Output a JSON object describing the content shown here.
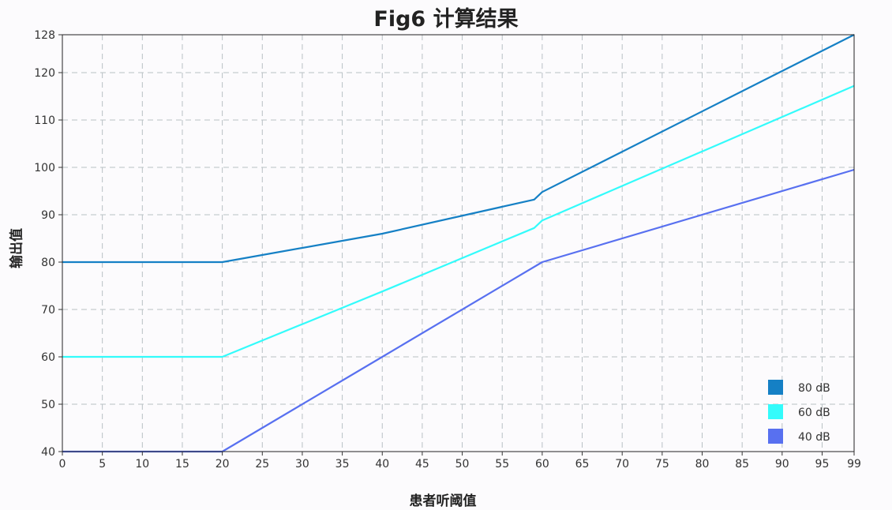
{
  "chart_data": {
    "type": "line",
    "title": "Fig6 计算结果",
    "xlabel": "患者听阈值",
    "ylabel": "输出值",
    "xlim": [
      0,
      99
    ],
    "ylim": [
      40,
      128
    ],
    "x_ticks": [
      0,
      5,
      10,
      15,
      20,
      25,
      30,
      35,
      40,
      45,
      50,
      55,
      60,
      65,
      70,
      75,
      80,
      85,
      90,
      95,
      99
    ],
    "y_ticks": [
      40,
      50,
      60,
      70,
      80,
      90,
      100,
      110,
      120,
      128
    ],
    "grid": true,
    "legend_position": "bottom-right",
    "series": [
      {
        "name": "80 dB",
        "color": "#1580c5",
        "points": [
          [
            0,
            80
          ],
          [
            20,
            80
          ],
          [
            40,
            86
          ],
          [
            59,
            93.2
          ],
          [
            60,
            94.8
          ],
          [
            99,
            128
          ]
        ]
      },
      {
        "name": "60 dB",
        "color": "#33fbfb",
        "points": [
          [
            0,
            60
          ],
          [
            20,
            60
          ],
          [
            40,
            73.8
          ],
          [
            59,
            87.2
          ],
          [
            60,
            88.8
          ],
          [
            99,
            117.2
          ]
        ]
      },
      {
        "name": "40 dB",
        "color": "#5870f0",
        "points": [
          [
            0,
            40
          ],
          [
            20,
            40
          ],
          [
            40,
            60
          ],
          [
            60,
            80
          ],
          [
            99,
            99.5
          ]
        ]
      }
    ]
  }
}
